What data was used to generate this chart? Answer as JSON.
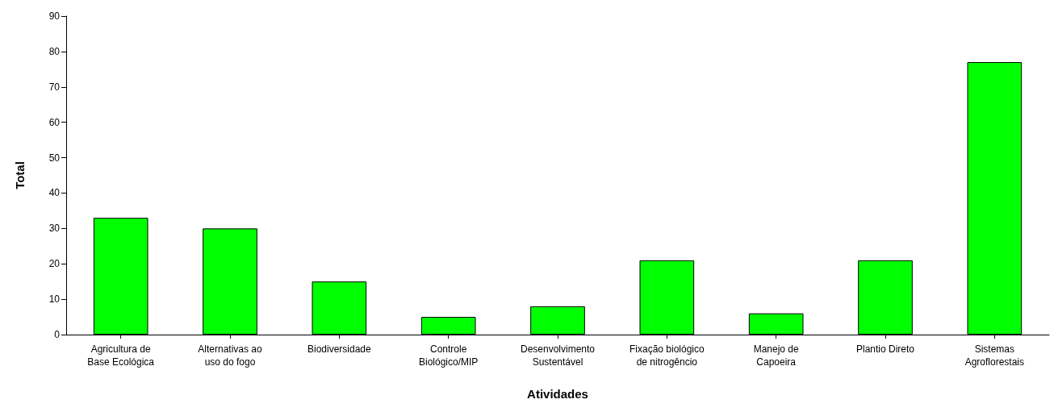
{
  "chart_data": {
    "type": "bar",
    "xlabel": "Atividades",
    "ylabel": "Total",
    "categories": [
      "Agricultura de\nBase Ecológica",
      "Alternativas ao\nuso do fogo",
      "Biodiversidade",
      "Controle\nBiológico/MIP",
      "Desenvolvimento\nSustentável",
      "Fixação biológico\nde nitrogêncio",
      "Manejo de\nCapoeira",
      "Plantio Direto",
      "Sistemas\nAgroflorestais"
    ],
    "values": [
      33,
      30,
      15,
      5,
      8,
      21,
      6,
      21,
      77
    ],
    "color": "#00ff00",
    "ylim": [
      0,
      90
    ],
    "yticks": [
      0,
      10,
      20,
      30,
      40,
      50,
      60,
      70,
      80,
      90
    ],
    "grid": false
  }
}
